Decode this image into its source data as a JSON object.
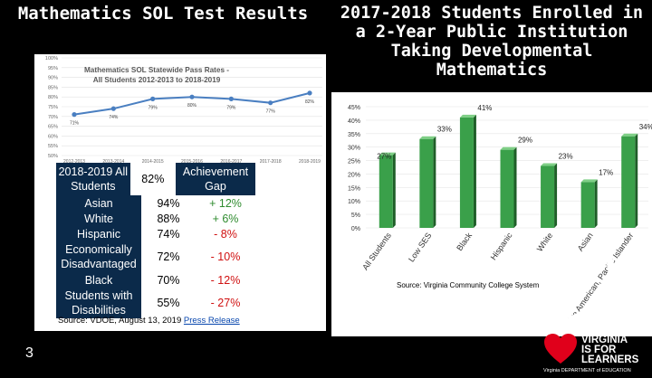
{
  "titles": {
    "left": "Mathematics SOL Test Results",
    "right": "2017-2018 Students Enrolled in a 2-Year Public Institution Taking Developmental Mathematics"
  },
  "page_number": "3",
  "table": {
    "header_label": "2018-2019 All Students",
    "header_value": "82%",
    "header_gap": "Achievement Gap",
    "rows": [
      {
        "label": "Asian",
        "value": "94%",
        "gap": "+ 12%",
        "color": "#2e8b2e"
      },
      {
        "label": "White",
        "value": "88%",
        "gap": "+ 6%",
        "color": "#2e8b2e"
      },
      {
        "label": "Hispanic",
        "value": "74%",
        "gap": "- 8%",
        "color": "#d01010"
      },
      {
        "label": "Economically Disadvantaged",
        "value": "72%",
        "gap": "- 10%",
        "color": "#d01010"
      },
      {
        "label": "Black",
        "value": "70%",
        "gap": "- 12%",
        "color": "#d01010"
      },
      {
        "label": "Students with Disabilities",
        "value": "55%",
        "gap": "- 27%",
        "color": "#d01010"
      }
    ]
  },
  "source_left": {
    "prefix": "Source: VDOE, August 13, 2019 ",
    "link": "Press Release"
  },
  "source_right": "Source: Virginia Community College System",
  "logo": {
    "line1": "VIRGINIA",
    "line2": "IS FOR",
    "line3": "LEARNERS",
    "footer": "Virginia DEPARTMENT of EDUCATION",
    "heart_color": "#e0001b"
  },
  "chart_data": [
    {
      "type": "line",
      "title": "Mathematics SOL Statewide Pass Rates - All Students 2012-2013 to 2018-2019",
      "categories": [
        "2012-2013",
        "2013-2014",
        "2014-2015",
        "2015-2016",
        "2016-2017",
        "2017-2018",
        "2018-2019"
      ],
      "values": [
        71,
        74,
        79,
        80,
        79,
        77,
        82
      ],
      "labels": [
        "71%",
        "74%",
        "79%",
        "80%",
        "79%",
        "77%",
        "82%"
      ],
      "ylim": [
        50,
        100
      ],
      "yticks": [
        "50%",
        "55%",
        "60%",
        "65%",
        "70%",
        "75%",
        "80%",
        "85%",
        "90%",
        "95%",
        "100%"
      ],
      "color": "#4a7fc1",
      "grid": true
    },
    {
      "type": "bar",
      "categories": [
        "All Students",
        "Low SES",
        "Black",
        "Hispanic",
        "White",
        "Asian",
        "Native American, Pacific Islander"
      ],
      "values": [
        27,
        33,
        41,
        29,
        23,
        17,
        34
      ],
      "labels": [
        "27%",
        "33%",
        "41%",
        "29%",
        "23%",
        "17%",
        "34%"
      ],
      "ylim": [
        0,
        45
      ],
      "yticks": [
        "0%",
        "5%",
        "10%",
        "15%",
        "20%",
        "25%",
        "30%",
        "35%",
        "40%",
        "45%"
      ],
      "color": "#3aa04a",
      "grid": true
    }
  ]
}
